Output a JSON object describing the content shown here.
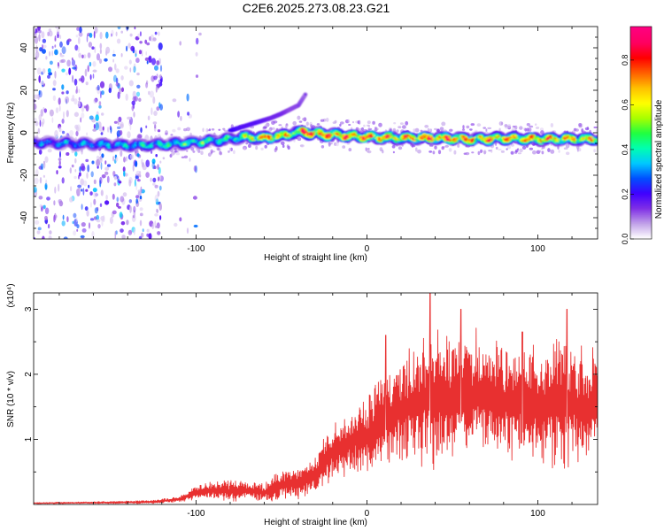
{
  "figure": {
    "title": "C2E6.2025.273.08.23.G21"
  },
  "colorbar": {
    "label": "Normalized spectral amplitude",
    "ticks": [
      "0.0",
      "0.2",
      "0.4",
      "0.6",
      "0.8"
    ],
    "range": [
      0,
      0.95
    ],
    "colormap": [
      "#ffffff",
      "#c0a0e8",
      "#7f2fe6",
      "#3f00ff",
      "#0050ff",
      "#00c8ff",
      "#00ffb0",
      "#20ff40",
      "#a8ff00",
      "#ffff00",
      "#ffc000",
      "#ff6000",
      "#ff0000",
      "#ff0060",
      "#ff0080"
    ]
  },
  "chart_data": [
    {
      "type": "heatmap",
      "title": "C2E6.2025.273.08.23.G21",
      "xlabel": "Height of straight line (km)",
      "ylabel": "Frequency (Hz)",
      "xlim": [
        -195,
        135
      ],
      "ylim": [
        -50,
        50
      ],
      "x_ticks": [
        "-100",
        "0",
        "100"
      ],
      "y_ticks": [
        "-40",
        "-20",
        "0",
        "20",
        "40"
      ],
      "x_tick_values": [
        -100,
        0,
        100
      ],
      "y_tick_values": [
        -40,
        -20,
        0,
        20,
        40
      ],
      "ridge": {
        "x": [
          -195,
          -180,
          -160,
          -140,
          -120,
          -100,
          -80,
          -72,
          -68,
          -60,
          -50,
          -42,
          -38,
          -30,
          -20,
          -10,
          0,
          20,
          40,
          60,
          80,
          100,
          120,
          135
        ],
        "frequency": [
          -4.5,
          -5,
          -5.5,
          -6,
          -5.5,
          -4.5,
          -3,
          -2,
          -2.2,
          -2.5,
          -1.5,
          0,
          0.5,
          -0.5,
          -1,
          -1.5,
          -2,
          -2.5,
          -2.5,
          -3,
          -2.5,
          -3,
          -3,
          -3
        ],
        "amplitude": [
          0.3,
          0.35,
          0.35,
          0.4,
          0.45,
          0.5,
          0.45,
          0.55,
          0.7,
          0.8,
          0.75,
          0.6,
          0.95,
          0.9,
          0.85,
          0.85,
          0.85,
          0.8,
          0.85,
          0.8,
          0.8,
          0.8,
          0.75,
          0.7
        ]
      },
      "branch": {
        "x": [
          -80,
          -72,
          -64,
          -56,
          -50,
          -45,
          -40,
          -36
        ],
        "frequency": [
          1,
          3,
          5,
          7,
          9,
          11,
          13,
          18
        ],
        "amplitude": [
          0.35,
          0.3,
          0.3,
          0.25,
          0.25,
          0.2,
          0.2,
          0.15
        ]
      }
    },
    {
      "type": "line",
      "xlabel": "Height of straight line (km)",
      "ylabel": "SNR (10 * v/v)",
      "y_multiplier_label": "(x10⁴)",
      "xlim": [
        -195,
        135
      ],
      "ylim": [
        0,
        3.25
      ],
      "x_ticks": [
        "-100",
        "0",
        "100"
      ],
      "y_ticks": [
        "1",
        "2",
        "3"
      ],
      "x_tick_values": [
        -100,
        0,
        100
      ],
      "y_tick_values": [
        1,
        2,
        3
      ],
      "color": "#e83030",
      "envelope": {
        "x": [
          -195,
          -150,
          -125,
          -110,
          -100,
          -90,
          -80,
          -70,
          -60,
          -50,
          -40,
          -30,
          -20,
          -10,
          0,
          10,
          20,
          30,
          40,
          50,
          60,
          70,
          80,
          90,
          100,
          110,
          120,
          135
        ],
        "mean": [
          0.02,
          0.03,
          0.04,
          0.08,
          0.18,
          0.22,
          0.2,
          0.22,
          0.18,
          0.3,
          0.35,
          0.45,
          0.8,
          0.95,
          1.05,
          1.25,
          1.45,
          1.55,
          1.7,
          1.6,
          1.7,
          1.65,
          1.6,
          1.55,
          1.55,
          1.6,
          1.5,
          1.5
        ],
        "amplitude": [
          0.01,
          0.02,
          0.03,
          0.05,
          0.12,
          0.15,
          0.18,
          0.15,
          0.16,
          0.25,
          0.28,
          0.35,
          0.5,
          0.55,
          0.75,
          0.85,
          0.95,
          1.0,
          1.3,
          1.0,
          1.1,
          1.05,
          1.0,
          0.95,
          0.95,
          1.1,
          1.0,
          0.9
        ]
      },
      "peaks": [
        {
          "x": 37,
          "y": 3.3
        },
        {
          "x": 55,
          "y": 3.0
        },
        {
          "x": 117,
          "y": 3.0
        },
        {
          "x": 11,
          "y": 2.6
        },
        {
          "x": 91,
          "y": 2.65
        }
      ]
    }
  ]
}
